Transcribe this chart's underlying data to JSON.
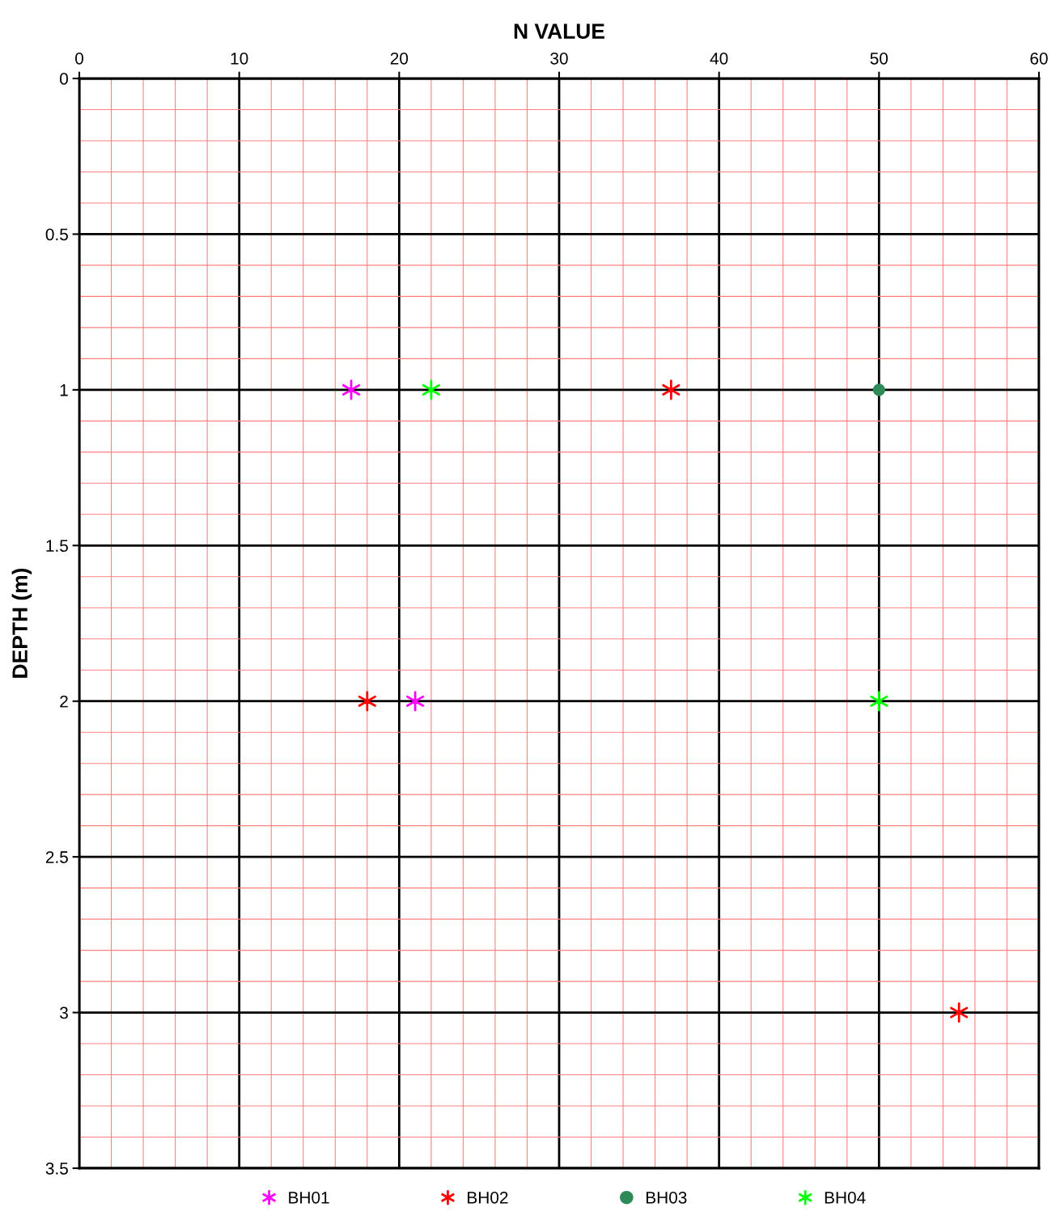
{
  "chart_data": {
    "type": "scatter",
    "xlabel": "N VALUE",
    "ylabel": "DEPTH (m)",
    "xlim": [
      0,
      60
    ],
    "xticks": [
      0,
      {
        "value": 2,
        "label": null
      },
      {
        "value": 4,
        "label": null
      },
      {
        "value": 6,
        "label": null
      },
      {
        "value": 8,
        "label": null
      },
      10,
      {
        "value": 12,
        "label": null
      },
      {
        "value": 14,
        "label": null
      },
      {
        "value": 16,
        "label": null
      },
      {
        "value": 18,
        "label": null
      },
      20,
      {
        "value": 22,
        "label": null
      },
      {
        "value": 24,
        "label": null
      },
      {
        "value": 26,
        "label": null
      },
      {
        "value": 28,
        "label": null
      },
      30,
      {
        "value": 32,
        "label": null
      },
      {
        "value": 34,
        "label": null
      },
      {
        "value": 36,
        "label": null
      },
      {
        "value": 38,
        "label": null
      },
      40,
      {
        "value": 42,
        "label": null
      },
      {
        "value": 44,
        "label": null
      },
      {
        "value": 46,
        "label": null
      },
      {
        "value": 48,
        "label": null
      },
      50,
      {
        "value": 52,
        "label": null
      },
      {
        "value": 54,
        "label": null
      },
      {
        "value": 56,
        "label": null
      },
      {
        "value": 58,
        "label": null
      },
      60
    ],
    "ylim": [
      3.5,
      0
    ],
    "yticks": [
      0,
      {
        "value": 0.1,
        "label": null
      },
      {
        "value": 0.2,
        "label": null
      },
      {
        "value": 0.3,
        "label": null
      },
      {
        "value": 0.4,
        "label": null
      },
      0.5,
      {
        "value": 0.6,
        "label": null
      },
      {
        "value": 0.7,
        "label": null
      },
      {
        "value": 0.8,
        "label": null
      },
      {
        "value": 0.9,
        "label": null
      },
      1,
      {
        "value": 1.1,
        "label": null
      },
      {
        "value": 1.2,
        "label": null
      },
      {
        "value": 1.3,
        "label": null
      },
      {
        "value": 1.4,
        "label": null
      },
      1.5,
      {
        "value": 1.6,
        "label": null
      },
      {
        "value": 1.7,
        "label": null
      },
      {
        "value": 1.8,
        "label": null
      },
      {
        "value": 1.9,
        "label": null
      },
      2,
      {
        "value": 2.1,
        "label": null
      },
      {
        "value": 2.2,
        "label": null
      },
      {
        "value": 2.3,
        "label": null
      },
      {
        "value": 2.4,
        "label": null
      },
      2.5,
      {
        "value": 2.6,
        "label": null
      },
      {
        "value": 2.7,
        "label": null
      },
      {
        "value": 2.8,
        "label": null
      },
      {
        "value": 2.9,
        "label": null
      },
      3,
      {
        "value": 3.1,
        "label": null
      },
      {
        "value": 3.2,
        "label": null
      },
      {
        "value": 3.3,
        "label": null
      },
      {
        "value": 3.4,
        "label": null
      },
      3.5
    ],
    "grid": true,
    "legend": "bottom",
    "series": [
      {
        "name": "BH01",
        "color": "#ff00ff",
        "marker": "cross",
        "x": [
          17,
          21
        ],
        "values": [
          1,
          2
        ]
      },
      {
        "name": "BH02",
        "color": "#ff0000",
        "marker": "cross",
        "x": [
          37,
          18,
          55
        ],
        "values": [
          1,
          2,
          3
        ]
      },
      {
        "name": "BH03",
        "color": "#2e8b57",
        "marker": "circle",
        "x": [
          50
        ],
        "values": [
          1
        ]
      },
      {
        "name": "BH04",
        "color": "#00ff00",
        "marker": "cross",
        "x": [
          22,
          50
        ],
        "values": [
          1,
          2
        ]
      }
    ]
  }
}
